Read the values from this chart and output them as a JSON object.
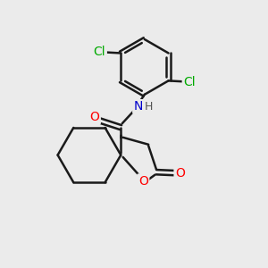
{
  "bg_color": "#ebebeb",
  "bond_color": "#1a1a1a",
  "bond_width": 1.8,
  "atom_colors": {
    "O": "#ff0000",
    "N": "#0000cc",
    "Cl": "#00aa00",
    "H": "#555555"
  },
  "font_size": 10,
  "font_size_h": 9
}
